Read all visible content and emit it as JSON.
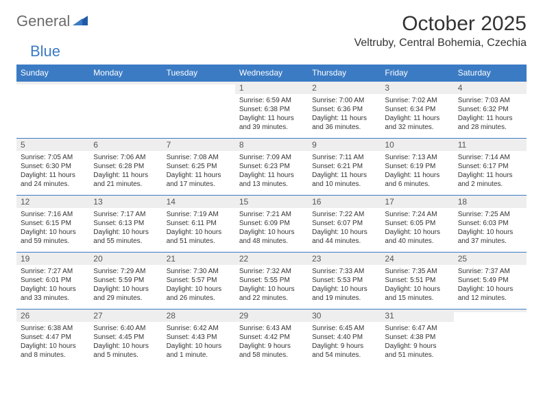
{
  "logo": {
    "text1": "General",
    "text2": "Blue"
  },
  "title": "October 2025",
  "location": "Veltruby, Central Bohemia, Czechia",
  "colors": {
    "header_bg": "#3b7bc4",
    "header_text": "#ffffff",
    "daynum_bg": "#eeeeee",
    "border": "#3b7bc4",
    "text": "#333333",
    "logo_gray": "#6b6b6b",
    "logo_blue": "#3b7bc4",
    "background": "#ffffff"
  },
  "typography": {
    "title_fontsize": 30,
    "location_fontsize": 16,
    "header_fontsize": 12,
    "daynum_fontsize": 12,
    "body_fontsize": 10
  },
  "day_headers": [
    "Sunday",
    "Monday",
    "Tuesday",
    "Wednesday",
    "Thursday",
    "Friday",
    "Saturday"
  ],
  "weeks": [
    [
      {
        "num": "",
        "lines": [
          "",
          "",
          "",
          ""
        ]
      },
      {
        "num": "",
        "lines": [
          "",
          "",
          "",
          ""
        ]
      },
      {
        "num": "",
        "lines": [
          "",
          "",
          "",
          ""
        ]
      },
      {
        "num": "1",
        "lines": [
          "Sunrise: 6:59 AM",
          "Sunset: 6:38 PM",
          "Daylight: 11 hours",
          "and 39 minutes."
        ]
      },
      {
        "num": "2",
        "lines": [
          "Sunrise: 7:00 AM",
          "Sunset: 6:36 PM",
          "Daylight: 11 hours",
          "and 36 minutes."
        ]
      },
      {
        "num": "3",
        "lines": [
          "Sunrise: 7:02 AM",
          "Sunset: 6:34 PM",
          "Daylight: 11 hours",
          "and 32 minutes."
        ]
      },
      {
        "num": "4",
        "lines": [
          "Sunrise: 7:03 AM",
          "Sunset: 6:32 PM",
          "Daylight: 11 hours",
          "and 28 minutes."
        ]
      }
    ],
    [
      {
        "num": "5",
        "lines": [
          "Sunrise: 7:05 AM",
          "Sunset: 6:30 PM",
          "Daylight: 11 hours",
          "and 24 minutes."
        ]
      },
      {
        "num": "6",
        "lines": [
          "Sunrise: 7:06 AM",
          "Sunset: 6:28 PM",
          "Daylight: 11 hours",
          "and 21 minutes."
        ]
      },
      {
        "num": "7",
        "lines": [
          "Sunrise: 7:08 AM",
          "Sunset: 6:25 PM",
          "Daylight: 11 hours",
          "and 17 minutes."
        ]
      },
      {
        "num": "8",
        "lines": [
          "Sunrise: 7:09 AM",
          "Sunset: 6:23 PM",
          "Daylight: 11 hours",
          "and 13 minutes."
        ]
      },
      {
        "num": "9",
        "lines": [
          "Sunrise: 7:11 AM",
          "Sunset: 6:21 PM",
          "Daylight: 11 hours",
          "and 10 minutes."
        ]
      },
      {
        "num": "10",
        "lines": [
          "Sunrise: 7:13 AM",
          "Sunset: 6:19 PM",
          "Daylight: 11 hours",
          "and 6 minutes."
        ]
      },
      {
        "num": "11",
        "lines": [
          "Sunrise: 7:14 AM",
          "Sunset: 6:17 PM",
          "Daylight: 11 hours",
          "and 2 minutes."
        ]
      }
    ],
    [
      {
        "num": "12",
        "lines": [
          "Sunrise: 7:16 AM",
          "Sunset: 6:15 PM",
          "Daylight: 10 hours",
          "and 59 minutes."
        ]
      },
      {
        "num": "13",
        "lines": [
          "Sunrise: 7:17 AM",
          "Sunset: 6:13 PM",
          "Daylight: 10 hours",
          "and 55 minutes."
        ]
      },
      {
        "num": "14",
        "lines": [
          "Sunrise: 7:19 AM",
          "Sunset: 6:11 PM",
          "Daylight: 10 hours",
          "and 51 minutes."
        ]
      },
      {
        "num": "15",
        "lines": [
          "Sunrise: 7:21 AM",
          "Sunset: 6:09 PM",
          "Daylight: 10 hours",
          "and 48 minutes."
        ]
      },
      {
        "num": "16",
        "lines": [
          "Sunrise: 7:22 AM",
          "Sunset: 6:07 PM",
          "Daylight: 10 hours",
          "and 44 minutes."
        ]
      },
      {
        "num": "17",
        "lines": [
          "Sunrise: 7:24 AM",
          "Sunset: 6:05 PM",
          "Daylight: 10 hours",
          "and 40 minutes."
        ]
      },
      {
        "num": "18",
        "lines": [
          "Sunrise: 7:25 AM",
          "Sunset: 6:03 PM",
          "Daylight: 10 hours",
          "and 37 minutes."
        ]
      }
    ],
    [
      {
        "num": "19",
        "lines": [
          "Sunrise: 7:27 AM",
          "Sunset: 6:01 PM",
          "Daylight: 10 hours",
          "and 33 minutes."
        ]
      },
      {
        "num": "20",
        "lines": [
          "Sunrise: 7:29 AM",
          "Sunset: 5:59 PM",
          "Daylight: 10 hours",
          "and 29 minutes."
        ]
      },
      {
        "num": "21",
        "lines": [
          "Sunrise: 7:30 AM",
          "Sunset: 5:57 PM",
          "Daylight: 10 hours",
          "and 26 minutes."
        ]
      },
      {
        "num": "22",
        "lines": [
          "Sunrise: 7:32 AM",
          "Sunset: 5:55 PM",
          "Daylight: 10 hours",
          "and 22 minutes."
        ]
      },
      {
        "num": "23",
        "lines": [
          "Sunrise: 7:33 AM",
          "Sunset: 5:53 PM",
          "Daylight: 10 hours",
          "and 19 minutes."
        ]
      },
      {
        "num": "24",
        "lines": [
          "Sunrise: 7:35 AM",
          "Sunset: 5:51 PM",
          "Daylight: 10 hours",
          "and 15 minutes."
        ]
      },
      {
        "num": "25",
        "lines": [
          "Sunrise: 7:37 AM",
          "Sunset: 5:49 PM",
          "Daylight: 10 hours",
          "and 12 minutes."
        ]
      }
    ],
    [
      {
        "num": "26",
        "lines": [
          "Sunrise: 6:38 AM",
          "Sunset: 4:47 PM",
          "Daylight: 10 hours",
          "and 8 minutes."
        ]
      },
      {
        "num": "27",
        "lines": [
          "Sunrise: 6:40 AM",
          "Sunset: 4:45 PM",
          "Daylight: 10 hours",
          "and 5 minutes."
        ]
      },
      {
        "num": "28",
        "lines": [
          "Sunrise: 6:42 AM",
          "Sunset: 4:43 PM",
          "Daylight: 10 hours",
          "and 1 minute."
        ]
      },
      {
        "num": "29",
        "lines": [
          "Sunrise: 6:43 AM",
          "Sunset: 4:42 PM",
          "Daylight: 9 hours",
          "and 58 minutes."
        ]
      },
      {
        "num": "30",
        "lines": [
          "Sunrise: 6:45 AM",
          "Sunset: 4:40 PM",
          "Daylight: 9 hours",
          "and 54 minutes."
        ]
      },
      {
        "num": "31",
        "lines": [
          "Sunrise: 6:47 AM",
          "Sunset: 4:38 PM",
          "Daylight: 9 hours",
          "and 51 minutes."
        ]
      },
      {
        "num": "",
        "lines": [
          "",
          "",
          "",
          ""
        ]
      }
    ]
  ]
}
